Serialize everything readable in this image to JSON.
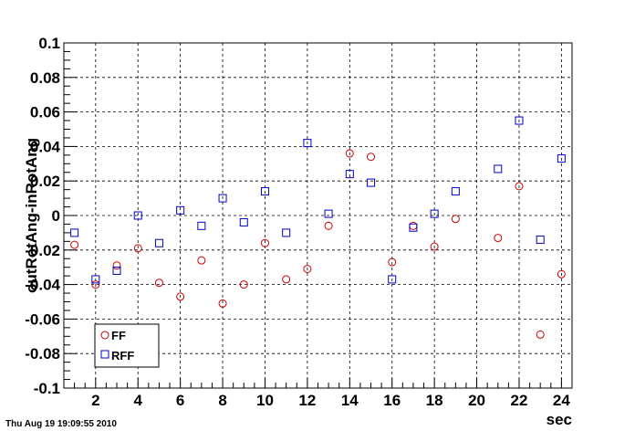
{
  "timestamp": "Thu Aug 19 19:09:55 2010",
  "colors": {
    "FF": "#cc0000",
    "RFF": "#0000cc",
    "grid": "#000000"
  },
  "chart_data": {
    "type": "scatter",
    "xlabel": "sec",
    "ylabel": "outRotAng-inRotAng",
    "xlim": [
      0.5,
      24.5
    ],
    "ylim": [
      -0.1,
      0.1
    ],
    "xticks": [
      2,
      4,
      6,
      8,
      10,
      12,
      14,
      16,
      18,
      20,
      22,
      24
    ],
    "yticks": [
      -0.1,
      -0.08,
      -0.06,
      -0.04,
      -0.02,
      0,
      0.02,
      0.04,
      0.06,
      0.08,
      0.1
    ],
    "ytick_labels": [
      "-0.1",
      "-0.08",
      "-0.06",
      "-0.04",
      "-0.02",
      "0",
      "0.02",
      "0.04",
      "0.06",
      "0.08",
      "0.1"
    ],
    "grid": true,
    "legend_position": "bottom-left",
    "series": [
      {
        "name": "FF",
        "marker": "circle",
        "x": [
          1,
          2,
          3,
          4,
          5,
          6,
          7,
          8,
          9,
          10,
          11,
          12,
          13,
          14,
          15,
          16,
          17,
          18,
          19,
          21,
          22,
          23,
          24
        ],
        "y": [
          -0.017,
          -0.04,
          -0.029,
          -0.019,
          -0.039,
          -0.047,
          -0.026,
          -0.051,
          -0.04,
          -0.016,
          -0.037,
          -0.031,
          -0.006,
          0.036,
          0.034,
          -0.027,
          -0.006,
          -0.018,
          -0.002,
          -0.013,
          0.017,
          -0.069,
          -0.034
        ]
      },
      {
        "name": "RFF",
        "marker": "square",
        "x": [
          1,
          2,
          3,
          4,
          5,
          6,
          7,
          8,
          9,
          10,
          11,
          12,
          13,
          14,
          15,
          16,
          17,
          18,
          19,
          21,
          22,
          23,
          24
        ],
        "y": [
          -0.01,
          -0.037,
          -0.032,
          0.0,
          -0.016,
          0.003,
          -0.006,
          0.01,
          -0.004,
          0.014,
          -0.01,
          0.042,
          0.001,
          0.024,
          0.019,
          -0.037,
          -0.007,
          0.001,
          0.014,
          0.027,
          0.055,
          -0.014,
          0.033
        ]
      }
    ]
  }
}
